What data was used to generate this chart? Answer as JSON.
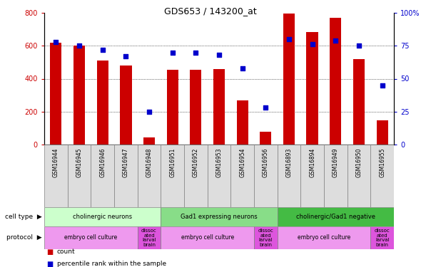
{
  "title": "GDS653 / 143200_at",
  "samples": [
    "GSM16944",
    "GSM16945",
    "GSM16946",
    "GSM16947",
    "GSM16948",
    "GSM16951",
    "GSM16952",
    "GSM16953",
    "GSM16954",
    "GSM16956",
    "GSM16893",
    "GSM16894",
    "GSM16949",
    "GSM16950",
    "GSM16955"
  ],
  "counts": [
    620,
    600,
    510,
    480,
    45,
    455,
    455,
    460,
    270,
    80,
    795,
    685,
    770,
    520,
    145
  ],
  "percentiles": [
    78,
    75,
    72,
    67,
    25,
    70,
    70,
    68,
    58,
    28,
    80,
    76,
    79,
    75,
    45
  ],
  "bar_color": "#cc0000",
  "dot_color": "#0000cc",
  "ylim_left": [
    0,
    800
  ],
  "ylim_right": [
    0,
    100
  ],
  "yticks_left": [
    0,
    200,
    400,
    600,
    800
  ],
  "yticks_right": [
    0,
    25,
    50,
    75,
    100
  ],
  "cell_types": [
    {
      "label": "cholinergic neurons",
      "start": 0,
      "end": 5,
      "color": "#ccffcc"
    },
    {
      "label": "Gad1 expressing neurons",
      "start": 5,
      "end": 10,
      "color": "#88dd88"
    },
    {
      "label": "cholinergic/Gad1 negative",
      "start": 10,
      "end": 15,
      "color": "#44bb44"
    }
  ],
  "protocols": [
    {
      "label": "embryo cell culture",
      "start": 0,
      "end": 4,
      "color": "#ee99ee"
    },
    {
      "label": "dissoc\nated\nlarval\nbrain",
      "start": 4,
      "end": 5,
      "color": "#dd55dd"
    },
    {
      "label": "embryo cell culture",
      "start": 5,
      "end": 9,
      "color": "#ee99ee"
    },
    {
      "label": "dissoc\nated\nlarval\nbrain",
      "start": 9,
      "end": 10,
      "color": "#dd55dd"
    },
    {
      "label": "embryo cell culture",
      "start": 10,
      "end": 14,
      "color": "#ee99ee"
    },
    {
      "label": "dissoc\nated\nlarval\nbrain",
      "start": 14,
      "end": 15,
      "color": "#dd55dd"
    }
  ],
  "legend_items": [
    {
      "label": "count",
      "color": "#cc0000"
    },
    {
      "label": "percentile rank within the sample",
      "color": "#0000cc"
    }
  ],
  "xtick_bg": "#dddddd"
}
